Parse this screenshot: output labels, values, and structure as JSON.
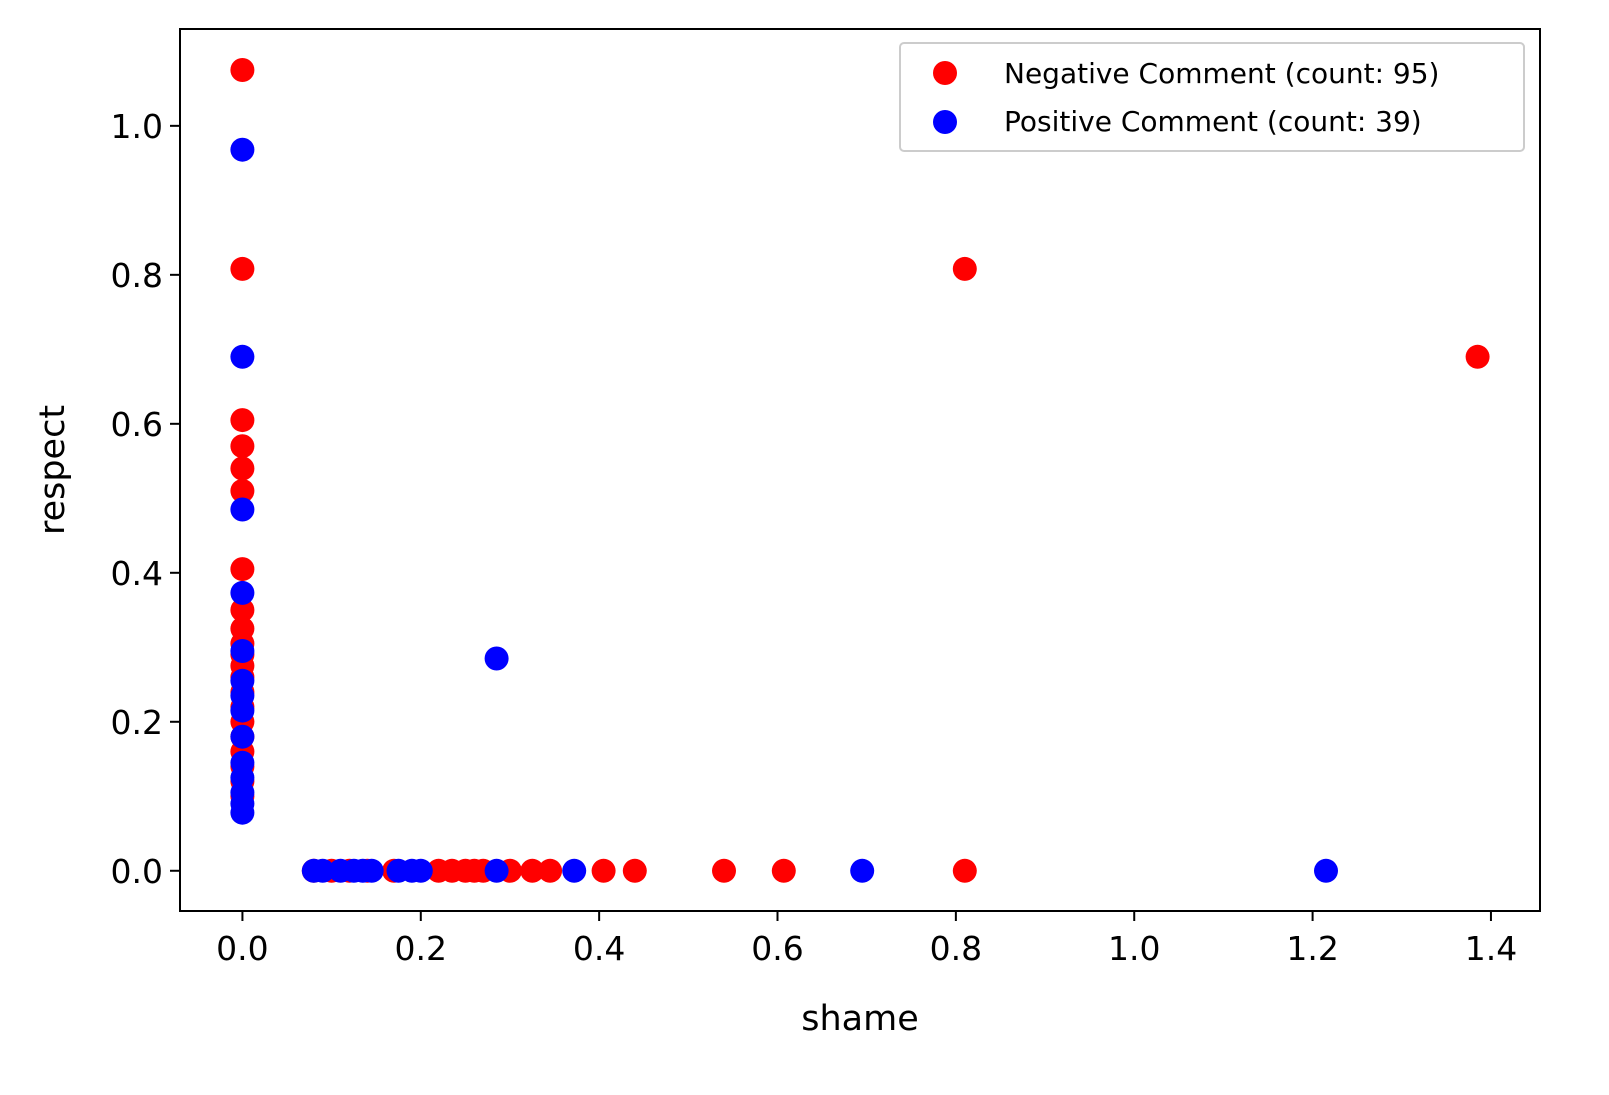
{
  "chart_data": {
    "type": "scatter",
    "xlabel": "shame",
    "ylabel": "respect",
    "xlim": [
      -0.07,
      1.455
    ],
    "ylim": [
      -0.054,
      1.13
    ],
    "xticks": [
      0.0,
      0.2,
      0.4,
      0.6,
      0.8,
      1.0,
      1.2,
      1.4
    ],
    "xtick_labels": [
      "0.0",
      "0.2",
      "0.4",
      "0.6",
      "0.8",
      "1.0",
      "1.2",
      "1.4"
    ],
    "yticks": [
      0.0,
      0.2,
      0.4,
      0.6,
      0.8,
      1.0
    ],
    "ytick_labels": [
      "0.0",
      "0.2",
      "0.4",
      "0.6",
      "0.8",
      "1.0"
    ],
    "legend_position": "top-right",
    "grid": false,
    "series": [
      {
        "name": "Negative Comment (count: 95)",
        "color": "#ff0000",
        "points": [
          [
            0,
            1.075
          ],
          [
            0,
            0.808
          ],
          [
            0,
            0.605
          ],
          [
            0,
            0.57
          ],
          [
            0,
            0.54
          ],
          [
            0,
            0.51
          ],
          [
            0,
            0.405
          ],
          [
            0,
            0.35
          ],
          [
            0,
            0.325
          ],
          [
            0,
            0.305
          ],
          [
            0,
            0.29
          ],
          [
            0,
            0.275
          ],
          [
            0,
            0.26
          ],
          [
            0,
            0.24
          ],
          [
            0,
            0.22
          ],
          [
            0,
            0.2
          ],
          [
            0,
            0.18
          ],
          [
            0,
            0.16
          ],
          [
            0,
            0.14
          ],
          [
            0,
            0.12
          ],
          [
            0,
            0.1
          ],
          [
            0.08,
            0
          ],
          [
            0.1,
            0
          ],
          [
            0.12,
            0
          ],
          [
            0.14,
            0
          ],
          [
            0.17,
            0
          ],
          [
            0.22,
            0
          ],
          [
            0.235,
            0
          ],
          [
            0.25,
            0
          ],
          [
            0.26,
            0
          ],
          [
            0.27,
            0
          ],
          [
            0.3,
            0
          ],
          [
            0.325,
            0
          ],
          [
            0.345,
            0
          ],
          [
            0.405,
            0
          ],
          [
            0.44,
            0
          ],
          [
            0.54,
            0
          ],
          [
            0.607,
            0
          ],
          [
            0.81,
            0
          ],
          [
            0.81,
            0.808
          ],
          [
            1.385,
            0.69
          ]
        ]
      },
      {
        "name": "Positive Comment (count: 39)",
        "color": "#0000ff",
        "points": [
          [
            0,
            0.968
          ],
          [
            0,
            0.69
          ],
          [
            0,
            0.485
          ],
          [
            0,
            0.373
          ],
          [
            0,
            0.295
          ],
          [
            0,
            0.255
          ],
          [
            0,
            0.235
          ],
          [
            0,
            0.215
          ],
          [
            0,
            0.18
          ],
          [
            0,
            0.145
          ],
          [
            0,
            0.125
          ],
          [
            0,
            0.105
          ],
          [
            0,
            0.09
          ],
          [
            0,
            0.078
          ],
          [
            0.08,
            0
          ],
          [
            0.09,
            0
          ],
          [
            0.11,
            0
          ],
          [
            0.125,
            0
          ],
          [
            0.135,
            0
          ],
          [
            0.145,
            0
          ],
          [
            0.175,
            0
          ],
          [
            0.19,
            0
          ],
          [
            0.2,
            0
          ],
          [
            0.285,
            0
          ],
          [
            0.372,
            0
          ],
          [
            0.695,
            0
          ],
          [
            1.215,
            0
          ],
          [
            0.285,
            0.285
          ]
        ]
      }
    ]
  }
}
